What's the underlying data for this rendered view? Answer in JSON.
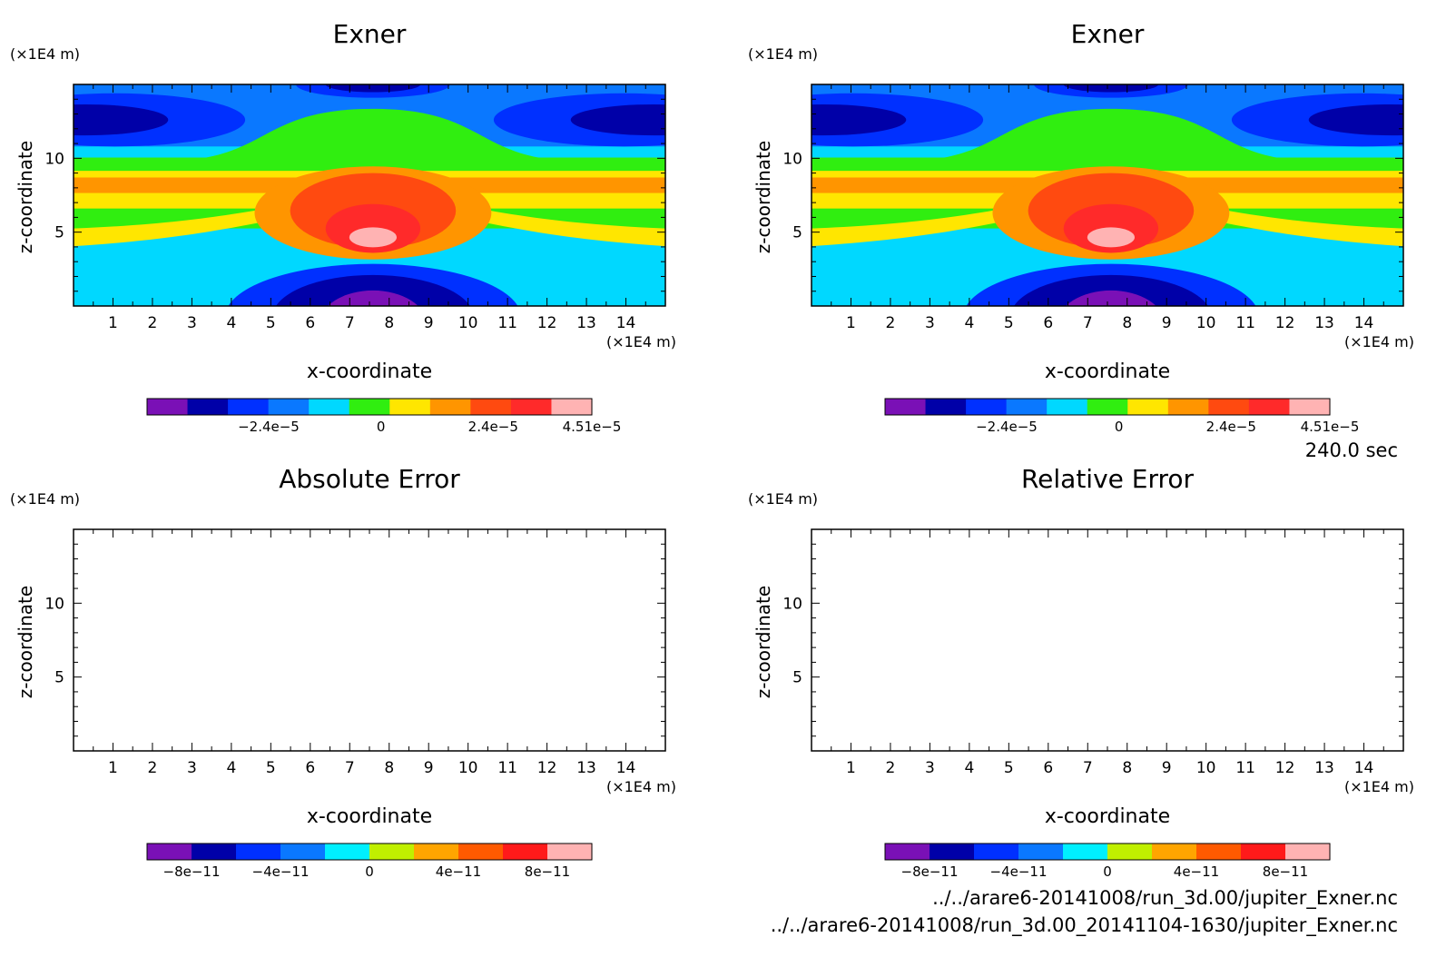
{
  "figure": {
    "time_label": "240.0 sec",
    "source_files": [
      "../../arare6-20141008/run_3d.00/jupiter_Exner.nc",
      "../../arare6-20141008/run_3d.00_20141104-1630/jupiter_Exner.nc"
    ]
  },
  "chart_data": [
    {
      "type": "heatmap",
      "title": "Exner",
      "xlabel": "x-coordinate",
      "ylabel": "z-coordinate",
      "x_unit": "(×1E4 m)",
      "z_unit": "(×1E4 m)",
      "xlim": [
        0,
        15
      ],
      "ylim": [
        0,
        15
      ],
      "xticks": [
        "1",
        "2",
        "3",
        "4",
        "5",
        "6",
        "7",
        "8",
        "9",
        "10",
        "11",
        "12",
        "13",
        "14"
      ],
      "yticks": [
        "5",
        "10"
      ],
      "colorbar": {
        "range": [
          -5e-05,
          4.51e-05
        ],
        "ticks": [
          {
            "value": -2.4e-05,
            "label": "−2.4e−5"
          },
          {
            "value": 0,
            "label": "0"
          },
          {
            "value": 2.4e-05,
            "label": "2.4e−5"
          },
          {
            "value": 4.51e-05,
            "label": "4.51e−5"
          }
        ],
        "colors": [
          "#7a10b6",
          "#0000a8",
          "#0030ff",
          "#0a78ff",
          "#00d8ff",
          "#30ee10",
          "#ffe600",
          "#ff9500",
          "#ff4a10",
          "#ff2a2a",
          "#ffb3b3"
        ]
      },
      "field": true
    },
    {
      "type": "heatmap",
      "title": "Exner",
      "xlabel": "x-coordinate",
      "ylabel": "z-coordinate",
      "x_unit": "(×1E4 m)",
      "z_unit": "(×1E4 m)",
      "xlim": [
        0,
        15
      ],
      "ylim": [
        0,
        15
      ],
      "xticks": [
        "1",
        "2",
        "3",
        "4",
        "5",
        "6",
        "7",
        "8",
        "9",
        "10",
        "11",
        "12",
        "13",
        "14"
      ],
      "yticks": [
        "5",
        "10"
      ],
      "colorbar": {
        "range": [
          -5e-05,
          4.51e-05
        ],
        "ticks": [
          {
            "value": -2.4e-05,
            "label": "−2.4e−5"
          },
          {
            "value": 0,
            "label": "0"
          },
          {
            "value": 2.4e-05,
            "label": "2.4e−5"
          },
          {
            "value": 4.51e-05,
            "label": "4.51e−5"
          }
        ],
        "colors": [
          "#7a10b6",
          "#0000a8",
          "#0030ff",
          "#0a78ff",
          "#00d8ff",
          "#30ee10",
          "#ffe600",
          "#ff9500",
          "#ff4a10",
          "#ff2a2a",
          "#ffb3b3"
        ]
      },
      "field": true
    },
    {
      "type": "heatmap",
      "title": "Absolute Error",
      "xlabel": "x-coordinate",
      "ylabel": "z-coordinate",
      "x_unit": "(×1E4 m)",
      "z_unit": "(×1E4 m)",
      "xlim": [
        0,
        15
      ],
      "ylim": [
        0,
        15
      ],
      "xticks": [
        "1",
        "2",
        "3",
        "4",
        "5",
        "6",
        "7",
        "8",
        "9",
        "10",
        "11",
        "12",
        "13",
        "14"
      ],
      "yticks": [
        "5",
        "10"
      ],
      "colorbar": {
        "range": [
          -1e-10,
          1e-10
        ],
        "ticks": [
          {
            "value": -8e-11,
            "label": "−8e−11"
          },
          {
            "value": -4e-11,
            "label": "−4e−11"
          },
          {
            "value": 0,
            "label": "0"
          },
          {
            "value": 4e-11,
            "label": "4e−11"
          },
          {
            "value": 8e-11,
            "label": "8e−11"
          }
        ],
        "colors": [
          "#7a10b6",
          "#0000a8",
          "#0030ff",
          "#0a78ff",
          "#00f0ff",
          "#c0f000",
          "#ffa500",
          "#ff5a00",
          "#ff1a1a",
          "#ffb3b3"
        ]
      },
      "field": false
    },
    {
      "type": "heatmap",
      "title": "Relative Error",
      "xlabel": "x-coordinate",
      "ylabel": "z-coordinate",
      "x_unit": "(×1E4 m)",
      "z_unit": "(×1E4 m)",
      "xlim": [
        0,
        15
      ],
      "ylim": [
        0,
        15
      ],
      "xticks": [
        "1",
        "2",
        "3",
        "4",
        "5",
        "6",
        "7",
        "8",
        "9",
        "10",
        "11",
        "12",
        "13",
        "14"
      ],
      "yticks": [
        "5",
        "10"
      ],
      "colorbar": {
        "range": [
          -1e-10,
          1e-10
        ],
        "ticks": [
          {
            "value": -8e-11,
            "label": "−8e−11"
          },
          {
            "value": -4e-11,
            "label": "−4e−11"
          },
          {
            "value": 0,
            "label": "0"
          },
          {
            "value": 4e-11,
            "label": "4e−11"
          },
          {
            "value": 8e-11,
            "label": "8e−11"
          }
        ],
        "colors": [
          "#7a10b6",
          "#0000a8",
          "#0030ff",
          "#0a78ff",
          "#00f0ff",
          "#c0f000",
          "#ffa500",
          "#ff5a00",
          "#ff1a1a",
          "#ffb3b3"
        ]
      },
      "field": false
    }
  ]
}
